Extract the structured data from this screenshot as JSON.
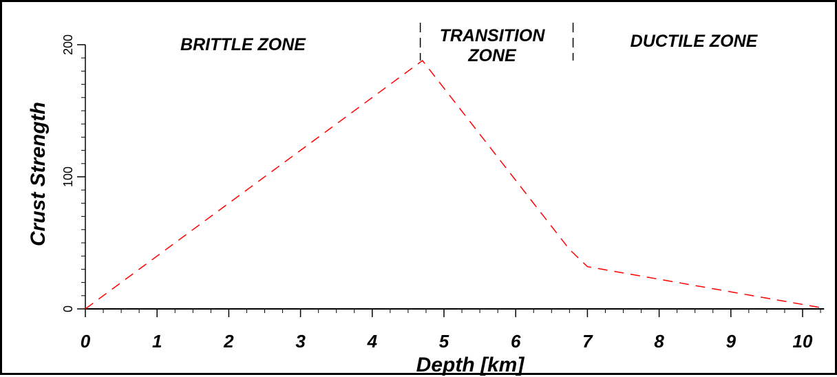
{
  "chart_data": {
    "type": "line",
    "xlabel": "Depth [km]",
    "ylabel": "Crust Strength",
    "xlim": [
      0,
      10.3
    ],
    "ylim": [
      0,
      200
    ],
    "x_ticks": [
      "0",
      "1",
      "2",
      "3",
      "4",
      "5",
      "6",
      "7",
      "8",
      "9",
      "10"
    ],
    "y_ticks": [
      "0",
      "100",
      "200"
    ],
    "grid": false,
    "series": [
      {
        "style": "dashed",
        "color": "#ff0000",
        "points": [
          {
            "x": 0,
            "y": 0
          },
          {
            "x": 4.7,
            "y": 188
          },
          {
            "x": 6.75,
            "y": 45
          },
          {
            "x": 7.0,
            "y": 32
          },
          {
            "x": 10.25,
            "y": 1
          }
        ]
      }
    ],
    "annotations": {
      "zones": [
        {
          "lines": [
            "BRITTLE ZONE"
          ]
        },
        {
          "lines": [
            "TRANSITION",
            "ZONE"
          ]
        },
        {
          "lines": [
            "DUCTILE ZONE"
          ]
        }
      ],
      "boundaries_km": [
        4.67,
        6.8
      ]
    }
  }
}
